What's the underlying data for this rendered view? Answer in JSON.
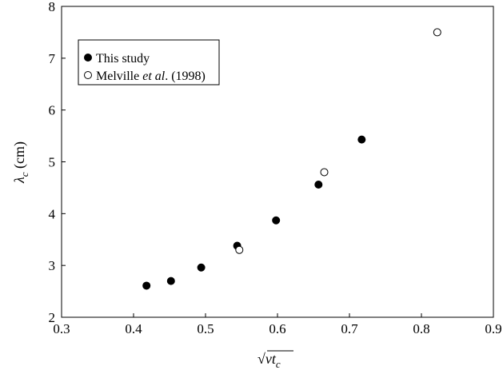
{
  "chart_data": {
    "type": "scatter",
    "xlim": [
      0.3,
      0.9
    ],
    "ylim": [
      2,
      8
    ],
    "xticks": [
      0.3,
      0.4,
      0.5,
      0.6,
      0.7,
      0.8,
      0.9
    ],
    "yticks": [
      2,
      3,
      4,
      5,
      6,
      7,
      8
    ],
    "xtick_labels": [
      "0.3",
      "0.4",
      "0.5",
      "0.6",
      "0.7",
      "0.8",
      "0.9"
    ],
    "ytick_labels": [
      "2",
      "3",
      "4",
      "5",
      "6",
      "7",
      "8"
    ],
    "xlabel": {
      "radical": "√",
      "symbol": "ν",
      "var": "t",
      "sub": "c"
    },
    "ylabel": {
      "symbol": "λ",
      "sub": "c",
      "unit": " (cm)"
    },
    "grid": false,
    "legend_position": "top-left",
    "series": [
      {
        "name": "This study",
        "marker": "filled-circle",
        "color": "#000000",
        "points": [
          [
            0.418,
            2.61
          ],
          [
            0.452,
            2.7
          ],
          [
            0.494,
            2.96
          ],
          [
            0.544,
            3.38
          ],
          [
            0.598,
            3.87
          ],
          [
            0.657,
            4.56
          ],
          [
            0.717,
            5.43
          ]
        ]
      },
      {
        "name_parts": [
          "Melville ",
          "et al",
          ". (1998)"
        ],
        "marker": "open-circle",
        "color": "#000000",
        "points": [
          [
            0.547,
            3.3
          ],
          [
            0.665,
            4.8
          ],
          [
            0.822,
            7.5
          ]
        ]
      }
    ]
  }
}
